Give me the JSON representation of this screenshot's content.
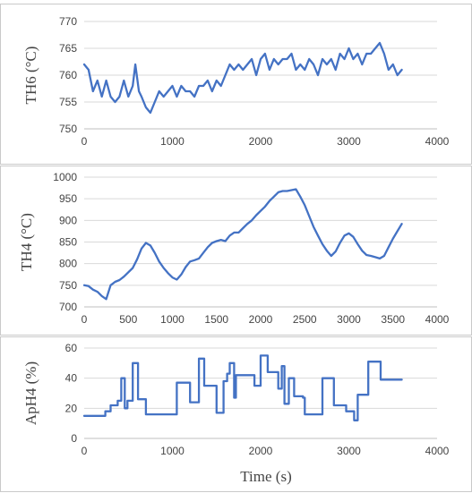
{
  "chart_data": [
    {
      "type": "line",
      "ylabel": "TH6 (°C)",
      "xlabel": "",
      "xlim": [
        0,
        4000
      ],
      "ylim": [
        750,
        770
      ],
      "xticks": [
        "0",
        "1000",
        "2000",
        "3000",
        "4000"
      ],
      "yticks": [
        "750",
        "755",
        "760",
        "765",
        "770"
      ],
      "grid": "horizontal",
      "color": "#4472C4",
      "series": [
        {
          "x": [
            0,
            50,
            100,
            150,
            200,
            250,
            300,
            350,
            400,
            450,
            500,
            550,
            580,
            620,
            650,
            700,
            750,
            800,
            850,
            900,
            950,
            1000,
            1050,
            1100,
            1150,
            1200,
            1250,
            1300,
            1350,
            1400,
            1450,
            1500,
            1550,
            1600,
            1650,
            1700,
            1750,
            1800,
            1850,
            1900,
            1950,
            2000,
            2050,
            2100,
            2150,
            2200,
            2250,
            2300,
            2350,
            2400,
            2450,
            2500,
            2550,
            2600,
            2650,
            2700,
            2750,
            2800,
            2850,
            2900,
            2950,
            3000,
            3050,
            3100,
            3150,
            3200,
            3250,
            3300,
            3350,
            3400,
            3450,
            3500,
            3550,
            3600
          ],
          "y": [
            762,
            761,
            757,
            759,
            756,
            759,
            756,
            755,
            756,
            759,
            756,
            758,
            762,
            757,
            756,
            754,
            753,
            755,
            757,
            756,
            757,
            758,
            756,
            758,
            757,
            757,
            756,
            758,
            758,
            759,
            757,
            759,
            758,
            760,
            762,
            761,
            762,
            761,
            762,
            763,
            760,
            763,
            764,
            761,
            763,
            762,
            763,
            763,
            764,
            761,
            762,
            761,
            763,
            762,
            760,
            763,
            762,
            763,
            761,
            764,
            763,
            765,
            763,
            764,
            762,
            764,
            764,
            765,
            766,
            764,
            761,
            762,
            760,
            761
          ]
        }
      ]
    },
    {
      "type": "line",
      "ylabel": "TH4 (°C)",
      "xlabel": "",
      "xlim": [
        0,
        4000
      ],
      "ylim": [
        700,
        1000
      ],
      "xticks": [
        "0",
        "500",
        "1000",
        "1500",
        "2000",
        "2500",
        "3000",
        "3500",
        "4000"
      ],
      "yticks": [
        "700",
        "750",
        "800",
        "850",
        "900",
        "950",
        "1000"
      ],
      "grid": "horizontal",
      "color": "#4472C4",
      "series": [
        {
          "x": [
            0,
            50,
            100,
            150,
            200,
            250,
            300,
            350,
            400,
            450,
            500,
            550,
            600,
            650,
            700,
            750,
            800,
            850,
            900,
            950,
            1000,
            1050,
            1100,
            1150,
            1200,
            1250,
            1300,
            1350,
            1400,
            1450,
            1500,
            1550,
            1600,
            1650,
            1700,
            1750,
            1800,
            1850,
            1900,
            1950,
            2000,
            2050,
            2100,
            2150,
            2200,
            2250,
            2300,
            2350,
            2400,
            2450,
            2500,
            2550,
            2600,
            2650,
            2700,
            2750,
            2800,
            2850,
            2900,
            2950,
            3000,
            3050,
            3100,
            3150,
            3200,
            3250,
            3300,
            3350,
            3400,
            3450,
            3500,
            3550,
            3600
          ],
          "y": [
            750,
            748,
            740,
            735,
            725,
            718,
            750,
            758,
            762,
            770,
            780,
            790,
            810,
            835,
            848,
            842,
            825,
            805,
            790,
            778,
            768,
            763,
            775,
            792,
            805,
            808,
            812,
            825,
            838,
            848,
            852,
            855,
            852,
            865,
            872,
            872,
            882,
            892,
            900,
            912,
            922,
            932,
            945,
            955,
            965,
            968,
            968,
            970,
            972,
            955,
            935,
            910,
            885,
            865,
            845,
            830,
            818,
            828,
            848,
            865,
            870,
            862,
            845,
            830,
            820,
            818,
            815,
            812,
            818,
            838,
            858,
            875,
            892
          ]
        }
      ]
    },
    {
      "type": "line",
      "ylabel": "ApH4  (%)",
      "xlabel": "Time (s)",
      "xlim": [
        0,
        4000
      ],
      "ylim": [
        0,
        60
      ],
      "xticks": [
        "0",
        "1000",
        "2000",
        "3000",
        "4000"
      ],
      "yticks": [
        "0",
        "20",
        "40",
        "60"
      ],
      "grid": "horizontal",
      "color": "#4472C4",
      "series": [
        {
          "x": [
            0,
            240,
            240,
            300,
            300,
            380,
            380,
            420,
            420,
            460,
            460,
            490,
            490,
            550,
            550,
            610,
            610,
            700,
            700,
            800,
            800,
            1050,
            1050,
            1200,
            1200,
            1230,
            1230,
            1300,
            1300,
            1360,
            1360,
            1500,
            1500,
            1580,
            1580,
            1620,
            1620,
            1650,
            1650,
            1700,
            1700,
            1720,
            1720,
            1930,
            1930,
            2000,
            2000,
            2080,
            2080,
            2200,
            2200,
            2240,
            2240,
            2270,
            2270,
            2320,
            2320,
            2380,
            2380,
            2480,
            2480,
            2500,
            2500,
            2700,
            2700,
            2830,
            2830,
            2970,
            2970,
            3060,
            3060,
            3100,
            3100,
            3180,
            3180,
            3220,
            3220,
            3360,
            3360,
            3400,
            3400,
            3600
          ],
          "y": [
            15,
            15,
            18,
            18,
            22,
            22,
            25,
            25,
            40,
            40,
            20,
            20,
            25,
            25,
            50,
            50,
            26,
            26,
            16,
            16,
            16,
            16,
            37,
            37,
            24,
            24,
            24,
            24,
            53,
            53,
            35,
            35,
            17,
            17,
            38,
            38,
            43,
            43,
            50,
            50,
            27,
            27,
            42,
            42,
            35,
            35,
            55,
            55,
            44,
            44,
            33,
            33,
            48,
            48,
            23,
            23,
            40,
            40,
            28,
            28,
            27,
            27,
            16,
            16,
            40,
            40,
            22,
            22,
            18,
            18,
            12,
            12,
            29,
            29,
            29,
            29,
            51,
            51,
            39,
            39,
            39,
            39
          ]
        }
      ]
    }
  ]
}
